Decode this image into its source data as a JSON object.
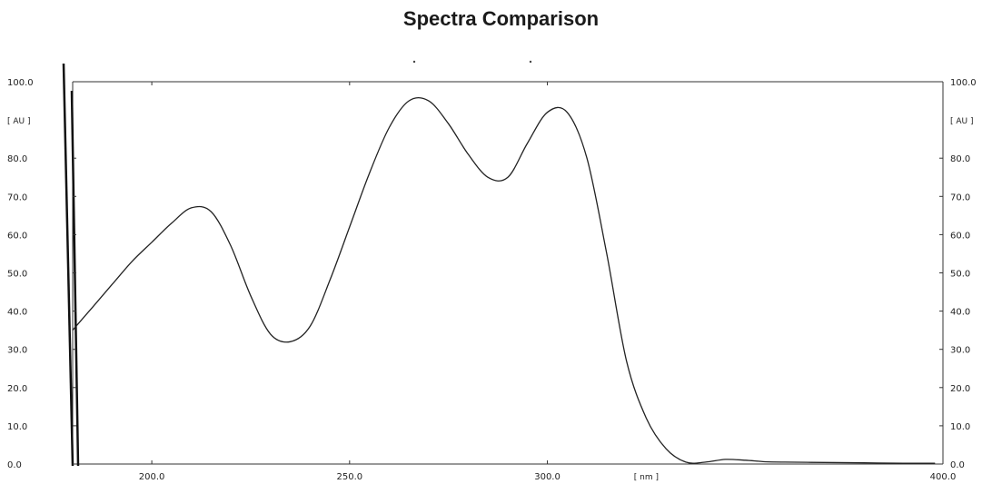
{
  "chart_data": {
    "type": "line",
    "title": "Spectra Comparison",
    "xlim": [
      180.0,
      400.0
    ],
    "ylim": [
      0.0,
      100.0
    ],
    "x_ticks": [
      {
        "value": 200.0,
        "label": "200.0"
      },
      {
        "value": 250.0,
        "label": "250.0"
      },
      {
        "value": 300.0,
        "label": "300.0"
      },
      {
        "value": 400.0,
        "label": "400.0"
      }
    ],
    "x_unit_label": "[ nm ]",
    "x_unit_value": 325.0,
    "y_ticks": [
      {
        "value": 0.0,
        "label": "0.0"
      },
      {
        "value": 10.0,
        "label": "10.0"
      },
      {
        "value": 20.0,
        "label": "20.0"
      },
      {
        "value": 30.0,
        "label": "30.0"
      },
      {
        "value": 40.0,
        "label": "40.0"
      },
      {
        "value": 50.0,
        "label": "50.0"
      },
      {
        "value": 60.0,
        "label": "60.0"
      },
      {
        "value": 70.0,
        "label": "70.0"
      },
      {
        "value": 80.0,
        "label": "80.0"
      },
      {
        "value": 100.0,
        "label": "100.0"
      }
    ],
    "y_unit_label": "[ AU ]",
    "y_unit_value": 90.0,
    "grid": false,
    "series": [
      {
        "x": [
          180,
          185,
          190,
          195,
          200,
          205,
          210,
          215,
          220,
          225,
          230,
          235,
          240,
          245,
          250,
          255,
          260,
          265,
          270,
          275,
          280,
          285,
          290,
          295,
          300,
          305,
          310,
          315,
          320,
          325,
          330,
          335,
          340,
          345,
          350,
          355,
          360,
          370,
          380,
          390,
          398
        ],
        "y": [
          35,
          41,
          47,
          53,
          58,
          63,
          67,
          66,
          57,
          44,
          34,
          32,
          36,
          48,
          62,
          76,
          88,
          95,
          95,
          89,
          81,
          75,
          75,
          84,
          92,
          92,
          80,
          55,
          27,
          12,
          4,
          0.5,
          0.5,
          1.2,
          1.0,
          0.6,
          0.5,
          0.4,
          0.3,
          0.2,
          0.2
        ]
      }
    ]
  }
}
